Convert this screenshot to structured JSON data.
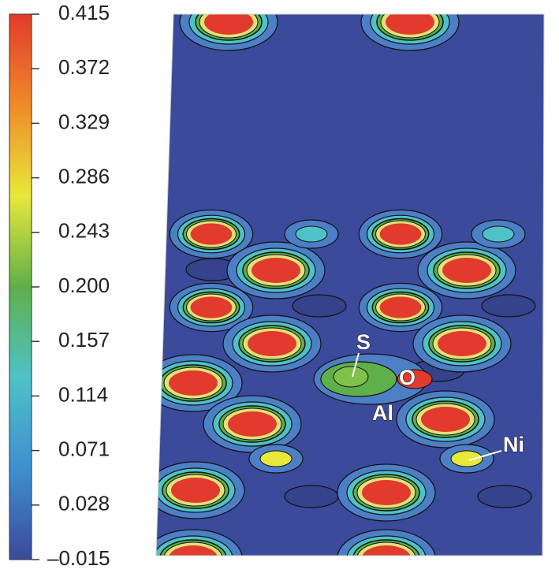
{
  "chart_data": {
    "type": "contour",
    "colorbar": {
      "ylim": [
        -0.015,
        0.415
      ],
      "yticks": [
        {
          "value": -0.015,
          "label": "–0.015"
        },
        0.028,
        0.071,
        0.114,
        0.157,
        {
          "value": 0.2,
          "label": "0.200"
        },
        0.243,
        0.286,
        0.329,
        0.372,
        0.415
      ],
      "colormap": [
        "#3b4a9b",
        "#3f8fd0",
        "#4ec2c8",
        "#5fb04a",
        "#e8e83a",
        "#f08a2a",
        "#e23a2c"
      ]
    },
    "annotations": [
      "S",
      "O",
      "Al",
      "Ni"
    ]
  }
}
